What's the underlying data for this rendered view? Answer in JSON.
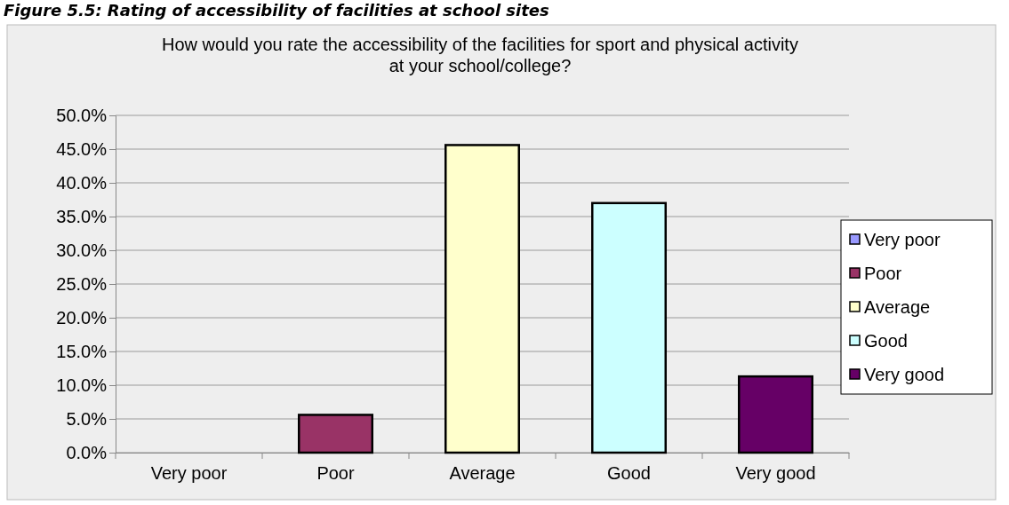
{
  "chart_data": {
    "type": "bar",
    "title": "How would you rate the accessibility of the facilities for sport and physical activity at your school/college?",
    "annotations": [
      "Figure 5.5: Rating of accessibility of facilities at school sites"
    ],
    "categories": [
      "Very poor",
      "Poor",
      "Average",
      "Good",
      "Very good"
    ],
    "series": [
      {
        "name": "Very poor",
        "color": "#9999ff",
        "values": [
          0,
          null,
          null,
          null,
          null
        ]
      },
      {
        "name": "Poor",
        "color": "#993366",
        "values": [
          null,
          5.6,
          null,
          null,
          null
        ]
      },
      {
        "name": "Average",
        "color": "#ffffcc",
        "values": [
          null,
          null,
          45.6,
          null,
          null
        ]
      },
      {
        "name": "Good",
        "color": "#ccffff",
        "values": [
          null,
          null,
          null,
          37.0,
          null
        ]
      },
      {
        "name": "Very good",
        "color": "#660066",
        "values": [
          null,
          null,
          null,
          null,
          11.3
        ]
      }
    ],
    "ylim": [
      0,
      50
    ],
    "yticks": [
      {
        "value": 0,
        "label": "0.0%"
      },
      {
        "value": 5,
        "label": "5.0%"
      },
      {
        "value": 10,
        "label": "10.0%"
      },
      {
        "value": 15,
        "label": "15.0%"
      },
      {
        "value": 20,
        "label": "20.0%"
      },
      {
        "value": 25,
        "label": "25.0%"
      },
      {
        "value": 30,
        "label": "30.0%"
      },
      {
        "value": 35,
        "label": "35.0%"
      },
      {
        "value": 40,
        "label": "40.0%"
      },
      {
        "value": 45,
        "label": "45.0%"
      },
      {
        "value": 50,
        "label": "50.0%"
      }
    ],
    "grid": "y",
    "legend": "right"
  }
}
